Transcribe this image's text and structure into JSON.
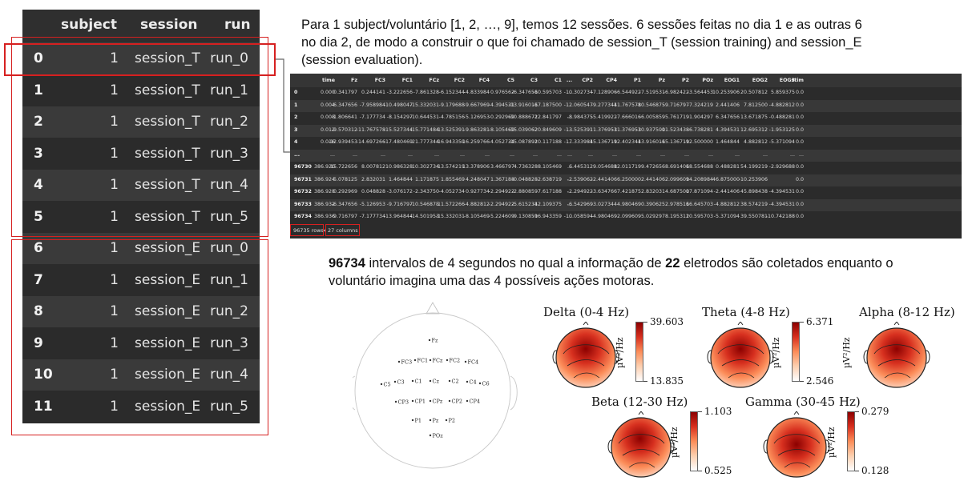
{
  "left_table": {
    "headers": [
      "subject",
      "session",
      "run"
    ],
    "rows": [
      {
        "idx": "0",
        "subject": "1",
        "session": "session_T",
        "run": "run_0"
      },
      {
        "idx": "1",
        "subject": "1",
        "session": "session_T",
        "run": "run_1"
      },
      {
        "idx": "2",
        "subject": "1",
        "session": "session_T",
        "run": "run_2"
      },
      {
        "idx": "3",
        "subject": "1",
        "session": "session_T",
        "run": "run_3"
      },
      {
        "idx": "4",
        "subject": "1",
        "session": "session_T",
        "run": "run_4"
      },
      {
        "idx": "5",
        "subject": "1",
        "session": "session_T",
        "run": "run_5"
      },
      {
        "idx": "6",
        "subject": "1",
        "session": "session_E",
        "run": "run_0"
      },
      {
        "idx": "7",
        "subject": "1",
        "session": "session_E",
        "run": "run_1"
      },
      {
        "idx": "8",
        "subject": "1",
        "session": "session_E",
        "run": "run_2"
      },
      {
        "idx": "9",
        "subject": "1",
        "session": "session_E",
        "run": "run_3"
      },
      {
        "idx": "10",
        "subject": "1",
        "session": "session_E",
        "run": "run_4"
      },
      {
        "idx": "11",
        "subject": "1",
        "session": "session_E",
        "run": "run_5"
      }
    ]
  },
  "intro_text": {
    "line1": "Para 1 subject/voluntário [1, 2, …, 9], temos 12 sessões. 6 sessões feitas no dia 1 e as outras 6",
    "line2": "no dia 2, de modo a construir o que foi chamado de session_T (session training) and session_E",
    "line3": "(session evaluation)."
  },
  "dataframe": {
    "columns": [
      "time",
      "Fz",
      "FC3",
      "FC1",
      "FCz",
      "FC2",
      "FC4",
      "C5",
      "C3",
      "C1",
      "...",
      "CP2",
      "CP4",
      "P1",
      "Pz",
      "P2",
      "POz",
      "EOG1",
      "EOG2",
      "EOG3",
      "stim"
    ],
    "rows": [
      {
        "idx": "0",
        "values": [
          "0.000",
          "0.341797",
          "0.244141",
          "-3.222656",
          "-7.861328",
          "-6.152344",
          "-4.833984",
          "0.976562",
          "-6.347656",
          "-10.595703",
          "...",
          "-10.302734",
          "-7.128906",
          "-6.544922",
          "-7.519531",
          "-6.982422",
          "-3.564453",
          "10.253906",
          "20.507812",
          "5.859375",
          "0.0"
        ]
      },
      {
        "idx": "1",
        "values": [
          "0.004",
          "-6.347656",
          "-7.958984",
          "-10.498047",
          "-15.332031",
          "-9.179688",
          "-9.667969",
          "-4.394531",
          "-13.916016",
          "-17.187500",
          "...",
          "-12.060547",
          "-9.277344",
          "-11.767578",
          "-10.546875",
          "-9.716797",
          "-7.324219",
          "2.441406",
          "7.812500",
          "-4.882812",
          "0.0"
        ]
      },
      {
        "idx": "2",
        "values": [
          "0.008",
          "-1.806641",
          "-7.177734",
          "-8.154297",
          "-10.644531",
          "-4.785156",
          "-5.126953",
          "-0.292969",
          "-10.888672",
          "-12.841797",
          "...",
          "-8.984375",
          "-5.419922",
          "-7.666016",
          "-6.005859",
          "-5.761719",
          "-1.904297",
          "6.347656",
          "13.671875",
          "-0.488281",
          "0.0"
        ]
      },
      {
        "idx": "3",
        "values": [
          "0.012",
          "-9.570312",
          "-11.767578",
          "-15.527344",
          "-15.771484",
          "-13.525391",
          "-9.863281",
          "-8.105469",
          "-15.039062",
          "-20.849609",
          "...",
          "-13.525391",
          "-11.376953",
          "-11.376953",
          "-10.937500",
          "-11.523438",
          "-6.738281",
          "4.394531",
          "12.695312",
          "-1.953125",
          "0.0"
        ]
      },
      {
        "idx": "4",
        "values": [
          "0.016",
          "-12.939453",
          "-14.697266",
          "-17.480469",
          "-21.777344",
          "-16.943359",
          "-16.259766",
          "-4.052734",
          "-15.087891",
          "-20.117188",
          "...",
          "-17.333984",
          "-15.136719",
          "-12.402344",
          "-13.916016",
          "-15.136719",
          "-12.500000",
          "1.464844",
          "4.882812",
          "-5.371094",
          "0.0"
        ]
      },
      {
        "idx": "...",
        "values": [
          "...",
          "...",
          "...",
          "...",
          "...",
          "...",
          "...",
          "...",
          "...",
          "...",
          "...",
          "...",
          "...",
          "...",
          "...",
          "...",
          "...",
          "...",
          "...",
          "...",
          "..."
        ]
      },
      {
        "idx": "96730",
        "values": [
          "386.920",
          "15.722656",
          "8.007812",
          "10.986328",
          "10.302734",
          "13.574219",
          "13.378906",
          "3.466797",
          "4.736328",
          "8.105469",
          "...",
          "6.445312",
          "9.054688",
          "12.011719",
          "9.472656",
          "8.691406",
          "18.554688",
          "0.488281",
          "54.199219",
          "-2.929688",
          "0.0"
        ]
      },
      {
        "idx": "96731",
        "values": [
          "386.924",
          "5.078125",
          "2.832031",
          "1.464844",
          "1.171875",
          "1.855469",
          "4.248047",
          "1.367188",
          "-0.048828",
          "-2.638719",
          "...",
          "-2.539062",
          "-2.441406",
          "6.250000",
          "2.441406",
          "2.099609",
          "14.208984",
          "46.875000",
          "-10.253906",
          "",
          "0.0"
        ]
      },
      {
        "idx": "96732",
        "values": [
          "386.928",
          "0.292969",
          "0.048828",
          "-3.076172",
          "-2.343750",
          "-4.052734",
          "0.927734",
          "-2.294922",
          "-2.880859",
          "-7.617188",
          "...",
          "-2.294922",
          "-3.634766",
          "7.421875",
          "2.832031",
          "4.687500",
          "17.871094",
          "-2.441406",
          "45.898438",
          "-4.394531",
          "0.0"
        ]
      },
      {
        "idx": "96733",
        "values": [
          "386.932",
          "-6.347656",
          "-5.126953",
          "-9.716797",
          "-10.546875",
          "-11.572266",
          "-4.882812",
          "-2.294922",
          "-5.615234",
          "-12.109375",
          "...",
          "-6.542969",
          "-3.027344",
          "4.980469",
          "0.390625",
          "2.978516",
          "16.645703",
          "-4.882812",
          "38.574219",
          "-4.394531",
          "0.0"
        ]
      },
      {
        "idx": "96734",
        "values": [
          "386.936",
          "-9.716797",
          "-7.177734",
          "-13.964844",
          "-14.501953",
          "-15.332031",
          "-8.105469",
          "-5.224609",
          "-9.130859",
          "-16.943359",
          "...",
          "-10.058594",
          "-4.980469",
          "-2.099609",
          "-5.029297",
          "8.195312",
          "10.595703",
          "-5.371094",
          "39.550781",
          "-10.742188",
          "0.0"
        ]
      }
    ],
    "footer_rows": "96735 rows",
    "footer_sep": "×",
    "footer_cols": "27 columns"
  },
  "description": {
    "n_intervals": "96734",
    "mid1": " intervalos de 4 segundos no qual a informação de ",
    "n_electrodes": "22",
    "mid2": " eletrodos são coletados enquanto o",
    "line2": "voluntário imagina uma das 4 possíveis ações motoras."
  },
  "montage": {
    "electrodes": [
      {
        "label": "Fz",
        "x": 100,
        "y": 55
      },
      {
        "label": "FC3",
        "x": 62,
        "y": 82
      },
      {
        "label": "FC1",
        "x": 82,
        "y": 80
      },
      {
        "label": "FCz",
        "x": 101,
        "y": 80
      },
      {
        "label": "FC2",
        "x": 122,
        "y": 80
      },
      {
        "label": "FC4",
        "x": 145,
        "y": 82
      },
      {
        "label": "C5",
        "x": 40,
        "y": 110
      },
      {
        "label": "C3",
        "x": 57,
        "y": 107
      },
      {
        "label": "C1",
        "x": 79,
        "y": 106
      },
      {
        "label": "Cz",
        "x": 101,
        "y": 106
      },
      {
        "label": "C2",
        "x": 125,
        "y": 106
      },
      {
        "label": "C4",
        "x": 147,
        "y": 107
      },
      {
        "label": "C6",
        "x": 163,
        "y": 109
      },
      {
        "label": "CP3",
        "x": 58,
        "y": 132
      },
      {
        "label": "CP1",
        "x": 79,
        "y": 131
      },
      {
        "label": "CPz",
        "x": 101,
        "y": 131
      },
      {
        "label": "CP2",
        "x": 125,
        "y": 131
      },
      {
        "label": "CP4",
        "x": 147,
        "y": 131
      },
      {
        "label": "P1",
        "x": 79,
        "y": 155
      },
      {
        "label": "Pz",
        "x": 101,
        "y": 155
      },
      {
        "label": "P2",
        "x": 121,
        "y": 155
      },
      {
        "label": "POz",
        "x": 101,
        "y": 174
      }
    ]
  },
  "bands": [
    {
      "name": "Delta (0-4 Hz)",
      "max": "39.603",
      "min": "13.835",
      "unit": "µV²/Hz"
    },
    {
      "name": "Theta (4-8 Hz)",
      "max": "6.371",
      "min": "2.546",
      "unit": "µV²/Hz"
    },
    {
      "name": "Alpha (8-12 Hz)",
      "max": "",
      "min": "",
      "unit": "µV²/Hz"
    },
    {
      "name": "Beta (12-30 Hz)",
      "max": "1.103",
      "min": "0.525",
      "unit": "µV²/Hz"
    },
    {
      "name": "Gamma (30-45 Hz)",
      "max": "0.279",
      "min": "0.128",
      "unit": "µV²/Hz"
    }
  ],
  "colors": {
    "highlight_red": "#d62020",
    "dark_bg": "#2b2b2b",
    "topo_red": "#d7301f"
  }
}
